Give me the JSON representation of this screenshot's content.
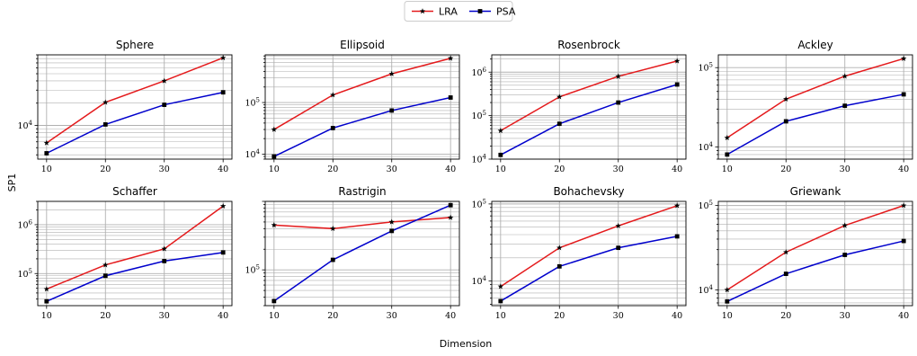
{
  "figure": {
    "xlabel": "Dimension",
    "ylabel": "SP1",
    "legend": {
      "placement": "top-center",
      "entries": [
        {
          "label": "LRA",
          "color": "#e41a1c",
          "marker": "star"
        },
        {
          "label": "PSA",
          "color": "#0000cc",
          "marker": "square"
        }
      ]
    }
  },
  "chart_data": [
    {
      "type": "line",
      "title": "Sphere",
      "scale_y": "log",
      "ylim": [
        3500,
        90000
      ],
      "x": [
        10,
        20,
        30,
        40
      ],
      "y_ticks": [
        {
          "value": 10000,
          "label": "10^4"
        }
      ],
      "series": [
        {
          "name": "LRA",
          "values": [
            5800,
            20500,
            40000,
            82000
          ]
        },
        {
          "name": "PSA",
          "values": [
            4200,
            10300,
            19000,
            28000
          ]
        }
      ],
      "grid": true
    },
    {
      "type": "line",
      "title": "Ellipsoid",
      "scale_y": "log",
      "ylim": [
        8000,
        840000
      ],
      "x": [
        10,
        20,
        30,
        40
      ],
      "y_ticks": [
        {
          "value": 10000,
          "label": "10^4"
        },
        {
          "value": 100000,
          "label": "10^5"
        }
      ],
      "series": [
        {
          "name": "LRA",
          "values": [
            30000,
            140000,
            360000,
            720000
          ]
        },
        {
          "name": "PSA",
          "values": [
            9000,
            32000,
            70000,
            125000
          ]
        }
      ],
      "grid": true
    },
    {
      "type": "line",
      "title": "Rosenbrock",
      "scale_y": "log",
      "ylim": [
        10000,
        2500000
      ],
      "x": [
        10,
        20,
        30,
        40
      ],
      "y_ticks": [
        {
          "value": 10000,
          "label": "10^4"
        },
        {
          "value": 100000,
          "label": "10^5"
        },
        {
          "value": 1000000,
          "label": "10^6"
        }
      ],
      "series": [
        {
          "name": "LRA",
          "values": [
            45000,
            270000,
            800000,
            1800000
          ]
        },
        {
          "name": "PSA",
          "values": [
            12500,
            65000,
            200000,
            520000
          ]
        }
      ],
      "grid": true
    },
    {
      "type": "line",
      "title": "Ackley",
      "scale_y": "log",
      "ylim": [
        7000,
        145000
      ],
      "x": [
        10,
        20,
        30,
        40
      ],
      "y_ticks": [
        {
          "value": 10000,
          "label": "10^4"
        },
        {
          "value": 100000,
          "label": "10^5"
        }
      ],
      "series": [
        {
          "name": "LRA",
          "values": [
            13000,
            40000,
            78000,
            130000
          ]
        },
        {
          "name": "PSA",
          "values": [
            8000,
            21000,
            33000,
            46000
          ]
        }
      ],
      "grid": true
    },
    {
      "type": "line",
      "title": "Schaffer",
      "scale_y": "log",
      "ylim": [
        22000,
        3000000
      ],
      "x": [
        10,
        20,
        30,
        40
      ],
      "y_ticks": [
        {
          "value": 100000,
          "label": "10^5"
        },
        {
          "value": 1000000,
          "label": "10^6"
        }
      ],
      "series": [
        {
          "name": "LRA",
          "values": [
            48000,
            150000,
            320000,
            2400000
          ]
        },
        {
          "name": "PSA",
          "values": [
            27000,
            90000,
            180000,
            270000
          ]
        }
      ],
      "grid": true
    },
    {
      "type": "line",
      "title": "Rastrigin",
      "scale_y": "log",
      "ylim": [
        30000,
        1000000
      ],
      "x": [
        10,
        20,
        30,
        40
      ],
      "y_ticks": [
        {
          "value": 100000,
          "label": "10^5"
        }
      ],
      "series": [
        {
          "name": "LRA",
          "values": [
            450000,
            400000,
            500000,
            580000
          ]
        },
        {
          "name": "PSA",
          "values": [
            35000,
            140000,
            370000,
            880000
          ]
        }
      ],
      "grid": true
    },
    {
      "type": "line",
      "title": "Bohachevsky",
      "scale_y": "log",
      "ylim": [
        4800,
        108000
      ],
      "x": [
        10,
        20,
        30,
        40
      ],
      "y_ticks": [
        {
          "value": 10000,
          "label": "10^4"
        },
        {
          "value": 100000,
          "label": "10^5"
        }
      ],
      "series": [
        {
          "name": "LRA",
          "values": [
            8500,
            27000,
            52000,
            95000
          ]
        },
        {
          "name": "PSA",
          "values": [
            5500,
            15500,
            27000,
            38000
          ]
        }
      ],
      "grid": true
    },
    {
      "type": "line",
      "title": "Griewank",
      "scale_y": "log",
      "ylim": [
        6500,
        112000
      ],
      "x": [
        10,
        20,
        30,
        40
      ],
      "y_ticks": [
        {
          "value": 10000,
          "label": "10^4"
        },
        {
          "value": 100000,
          "label": "10^5"
        }
      ],
      "series": [
        {
          "name": "LRA",
          "values": [
            10000,
            28000,
            58000,
            100000
          ]
        },
        {
          "name": "PSA",
          "values": [
            7300,
            15500,
            26000,
            38000
          ]
        }
      ],
      "grid": true
    }
  ]
}
